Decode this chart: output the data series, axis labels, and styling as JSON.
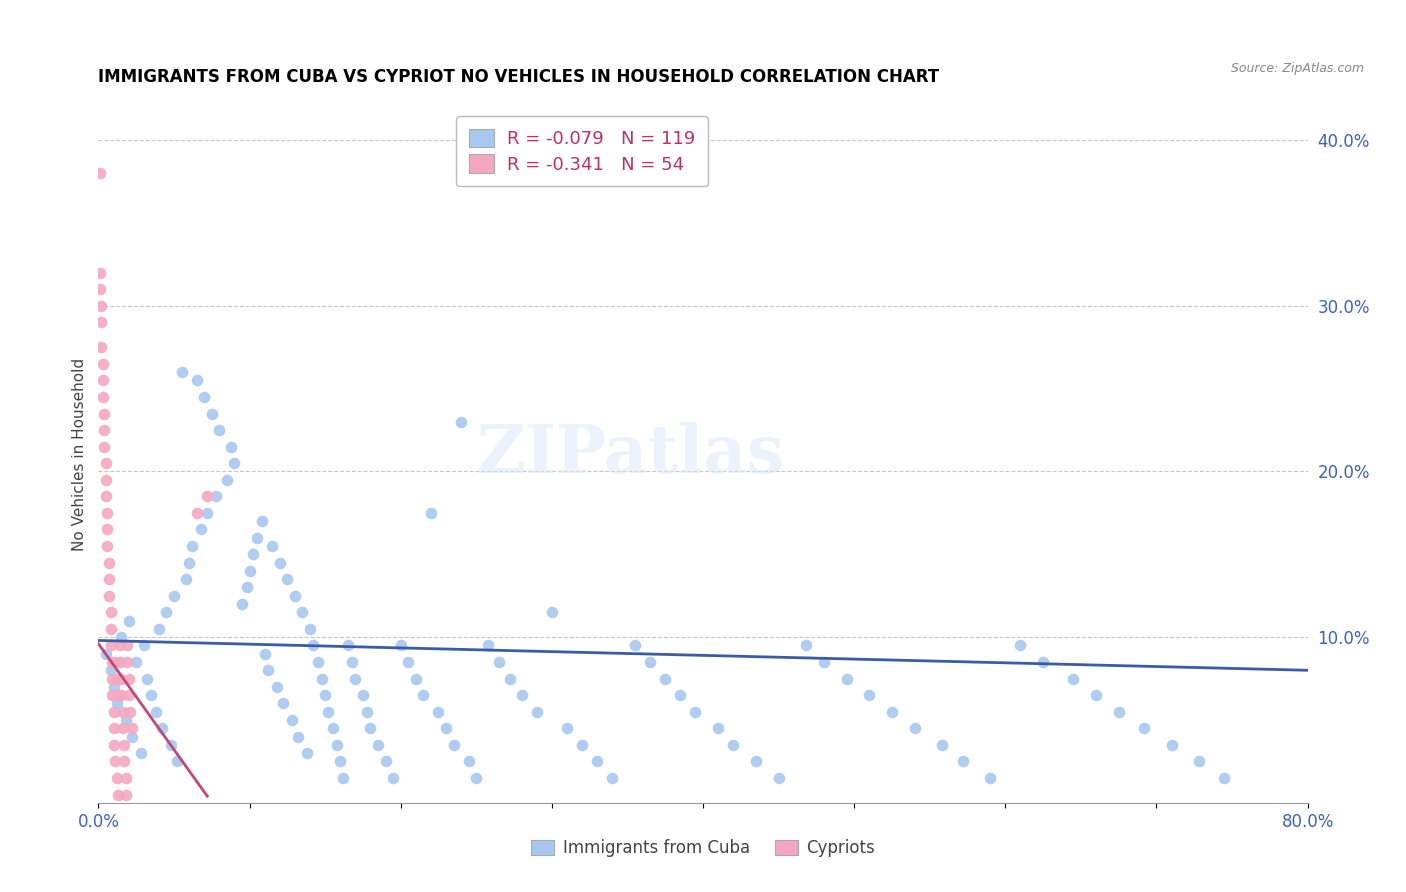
{
  "title": "IMMIGRANTS FROM CUBA VS CYPRIOT NO VEHICLES IN HOUSEHOLD CORRELATION CHART",
  "source": "Source: ZipAtlas.com",
  "ylabel": "No Vehicles in Household",
  "xlim": [
    0.0,
    0.8
  ],
  "ylim": [
    0.0,
    0.42
  ],
  "blue_R": -0.079,
  "blue_N": 119,
  "pink_R": -0.341,
  "pink_N": 54,
  "legend_label_blue": "Immigrants from Cuba",
  "legend_label_pink": "Cypriots",
  "blue_color": "#a8c8f0",
  "pink_color": "#f4a8c0",
  "blue_line_color": "#3a5ca8",
  "pink_line_color": "#c04878",
  "watermark": "ZIPatlas",
  "blue_line_x": [
    0.0,
    0.8
  ],
  "blue_line_y": [
    0.098,
    0.08
  ],
  "pink_line_x": [
    0.0,
    0.072
  ],
  "pink_line_y": [
    0.096,
    0.004
  ],
  "blue_x": [
    0.005,
    0.008,
    0.01,
    0.012,
    0.015,
    0.018,
    0.02,
    0.022,
    0.025,
    0.028,
    0.03,
    0.032,
    0.035,
    0.038,
    0.04,
    0.042,
    0.045,
    0.048,
    0.05,
    0.052,
    0.055,
    0.058,
    0.06,
    0.062,
    0.065,
    0.068,
    0.07,
    0.072,
    0.075,
    0.078,
    0.08,
    0.085,
    0.088,
    0.09,
    0.095,
    0.098,
    0.1,
    0.102,
    0.105,
    0.108,
    0.11,
    0.112,
    0.115,
    0.118,
    0.12,
    0.122,
    0.125,
    0.128,
    0.13,
    0.132,
    0.135,
    0.138,
    0.14,
    0.142,
    0.145,
    0.148,
    0.15,
    0.152,
    0.155,
    0.158,
    0.16,
    0.162,
    0.165,
    0.168,
    0.17,
    0.175,
    0.178,
    0.18,
    0.185,
    0.19,
    0.195,
    0.2,
    0.205,
    0.21,
    0.215,
    0.22,
    0.225,
    0.23,
    0.235,
    0.24,
    0.245,
    0.25,
    0.258,
    0.265,
    0.272,
    0.28,
    0.29,
    0.3,
    0.31,
    0.32,
    0.33,
    0.34,
    0.355,
    0.365,
    0.375,
    0.385,
    0.395,
    0.41,
    0.42,
    0.435,
    0.45,
    0.468,
    0.48,
    0.495,
    0.51,
    0.525,
    0.54,
    0.558,
    0.572,
    0.59,
    0.61,
    0.625,
    0.645,
    0.66,
    0.675,
    0.692,
    0.71,
    0.728,
    0.745
  ],
  "blue_y": [
    0.09,
    0.08,
    0.07,
    0.06,
    0.1,
    0.05,
    0.11,
    0.04,
    0.085,
    0.03,
    0.095,
    0.075,
    0.065,
    0.055,
    0.105,
    0.045,
    0.115,
    0.035,
    0.125,
    0.025,
    0.26,
    0.135,
    0.145,
    0.155,
    0.255,
    0.165,
    0.245,
    0.175,
    0.235,
    0.185,
    0.225,
    0.195,
    0.215,
    0.205,
    0.12,
    0.13,
    0.14,
    0.15,
    0.16,
    0.17,
    0.09,
    0.08,
    0.155,
    0.07,
    0.145,
    0.06,
    0.135,
    0.05,
    0.125,
    0.04,
    0.115,
    0.03,
    0.105,
    0.095,
    0.085,
    0.075,
    0.065,
    0.055,
    0.045,
    0.035,
    0.025,
    0.015,
    0.095,
    0.085,
    0.075,
    0.065,
    0.055,
    0.045,
    0.035,
    0.025,
    0.015,
    0.095,
    0.085,
    0.075,
    0.065,
    0.175,
    0.055,
    0.045,
    0.035,
    0.23,
    0.025,
    0.015,
    0.095,
    0.085,
    0.075,
    0.065,
    0.055,
    0.115,
    0.045,
    0.035,
    0.025,
    0.015,
    0.095,
    0.085,
    0.075,
    0.065,
    0.055,
    0.045,
    0.035,
    0.025,
    0.015,
    0.095,
    0.085,
    0.075,
    0.065,
    0.055,
    0.045,
    0.035,
    0.025,
    0.015,
    0.095,
    0.085,
    0.075,
    0.065,
    0.055,
    0.045,
    0.035,
    0.025,
    0.015
  ],
  "pink_x": [
    0.001,
    0.001,
    0.001,
    0.002,
    0.002,
    0.002,
    0.003,
    0.003,
    0.003,
    0.004,
    0.004,
    0.004,
    0.005,
    0.005,
    0.005,
    0.006,
    0.006,
    0.006,
    0.007,
    0.007,
    0.007,
    0.008,
    0.008,
    0.008,
    0.009,
    0.009,
    0.009,
    0.01,
    0.01,
    0.01,
    0.011,
    0.011,
    0.012,
    0.012,
    0.013,
    0.013,
    0.014,
    0.014,
    0.015,
    0.015,
    0.016,
    0.016,
    0.017,
    0.017,
    0.018,
    0.018,
    0.019,
    0.019,
    0.02,
    0.02,
    0.021,
    0.022,
    0.065,
    0.072
  ],
  "pink_y": [
    0.38,
    0.32,
    0.31,
    0.3,
    0.29,
    0.275,
    0.265,
    0.255,
    0.245,
    0.235,
    0.225,
    0.215,
    0.205,
    0.195,
    0.185,
    0.175,
    0.165,
    0.155,
    0.145,
    0.135,
    0.125,
    0.115,
    0.105,
    0.095,
    0.085,
    0.075,
    0.065,
    0.055,
    0.045,
    0.035,
    0.085,
    0.025,
    0.075,
    0.015,
    0.065,
    0.005,
    0.095,
    0.085,
    0.075,
    0.065,
    0.055,
    0.045,
    0.035,
    0.025,
    0.015,
    0.005,
    0.095,
    0.085,
    0.075,
    0.065,
    0.055,
    0.045,
    0.175,
    0.185
  ]
}
